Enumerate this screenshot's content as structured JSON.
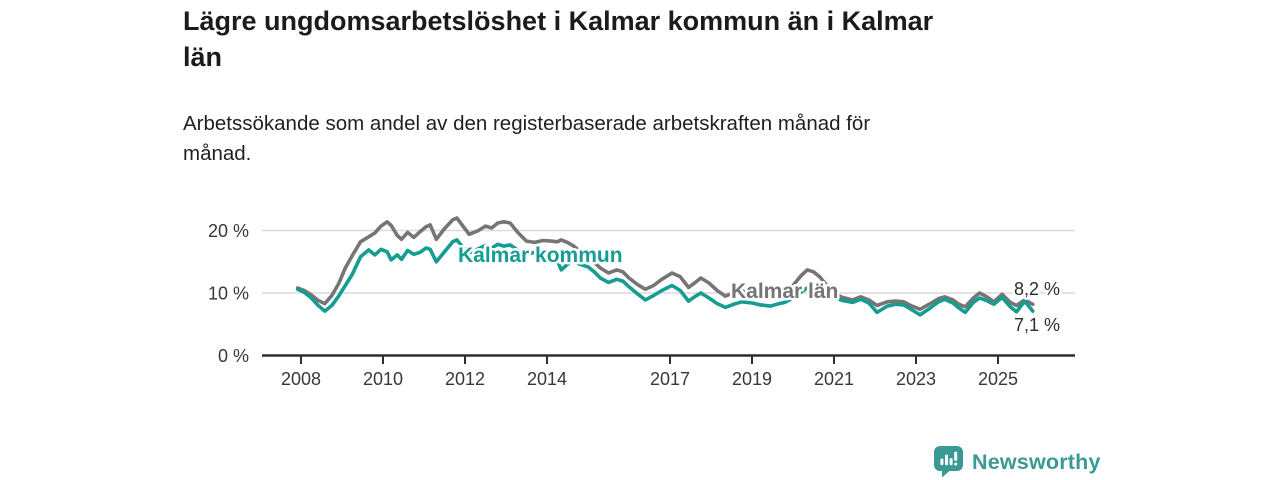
{
  "header": {
    "title": "Lägre ungdomsarbetslöshet i Kalmar kommun än i Kalmar län",
    "subtitle": "Arbetssökande som andel av den registerbaserade arbetskraften månad för månad."
  },
  "footer": {
    "brand": "Newsworthy"
  },
  "colors": {
    "kommun": "#149d90",
    "lan": "#757575",
    "axis": "#2e2e2e",
    "grid": "#dadada",
    "tick_text": "#383838",
    "title_text": "#1b1b1b",
    "brand": "#3a9a93"
  },
  "chart_data": {
    "type": "line",
    "title": "Lägre ungdomsarbetslöshet i Kalmar kommun än i Kalmar län",
    "subtitle": "Arbetssökande som andel av den registerbaserade arbetskraften månad för månad.",
    "xlabel": "",
    "ylabel": "",
    "ylim": [
      0,
      23
    ],
    "xlim": [
      2007.05,
      2026.9
    ],
    "grid": "horizontal",
    "legend_position": "inline-labels",
    "y_ticks": [
      {
        "value": 0,
        "label": "0 %"
      },
      {
        "value": 10,
        "label": "10 %"
      },
      {
        "value": 20,
        "label": "20 %"
      }
    ],
    "x_ticks": [
      {
        "value": 2008,
        "label": "2008"
      },
      {
        "value": 2010,
        "label": "2010"
      },
      {
        "value": 2012,
        "label": "2012"
      },
      {
        "value": 2014,
        "label": "2014"
      },
      {
        "value": 2017,
        "label": "2017"
      },
      {
        "value": 2019,
        "label": "2019"
      },
      {
        "value": 2021,
        "label": "2021"
      },
      {
        "value": 2023,
        "label": "2023"
      },
      {
        "value": 2025,
        "label": "2025"
      }
    ],
    "x": [
      2007.92,
      2008.08,
      2008.25,
      2008.42,
      2008.58,
      2008.75,
      2008.92,
      2009.08,
      2009.25,
      2009.45,
      2009.65,
      2009.8,
      2009.95,
      2010.1,
      2010.2,
      2010.35,
      2010.45,
      2010.6,
      2010.75,
      2010.9,
      2011.05,
      2011.15,
      2011.3,
      2011.5,
      2011.7,
      2011.8,
      2011.95,
      2012.1,
      2012.3,
      2012.5,
      2012.65,
      2012.8,
      2012.95,
      2013.1,
      2013.3,
      2013.5,
      2013.7,
      2013.9,
      2014.1,
      2014.25,
      2014.35,
      2014.5,
      2014.65,
      2014.8,
      2015.0,
      2015.15,
      2015.3,
      2015.5,
      2015.7,
      2015.85,
      2016.0,
      2016.2,
      2016.4,
      2016.6,
      2016.8,
      2017.05,
      2017.25,
      2017.45,
      2017.6,
      2017.75,
      2017.95,
      2018.15,
      2018.35,
      2018.55,
      2018.75,
      2019.0,
      2019.2,
      2019.45,
      2019.6,
      2019.8,
      2020.0,
      2020.2,
      2020.35,
      2020.5,
      2020.65,
      2020.8,
      2021.0,
      2021.2,
      2021.45,
      2021.65,
      2021.85,
      2022.05,
      2022.3,
      2022.5,
      2022.7,
      2022.9,
      2023.1,
      2023.35,
      2023.55,
      2023.7,
      2023.9,
      2024.05,
      2024.2,
      2024.4,
      2024.55,
      2024.75,
      2024.9,
      2025.1,
      2025.3,
      2025.45,
      2025.65,
      2025.85
    ],
    "series": [
      {
        "id": "lan",
        "name": "Kalmar län",
        "color_key": "lan",
        "end_label": "8,2 %",
        "values": [
          10.8,
          10.4,
          9.7,
          8.8,
          8.3,
          9.6,
          11.5,
          14.0,
          16.0,
          18.2,
          19.0,
          19.6,
          20.7,
          21.4,
          20.8,
          19.2,
          18.6,
          19.7,
          18.9,
          19.8,
          20.6,
          20.9,
          18.6,
          20.3,
          21.7,
          22.0,
          20.7,
          19.4,
          19.9,
          20.7,
          20.4,
          21.2,
          21.4,
          21.2,
          19.6,
          18.3,
          18.1,
          18.4,
          18.3,
          18.2,
          18.5,
          18.1,
          17.5,
          16.7,
          15.8,
          14.9,
          14.0,
          13.2,
          13.7,
          13.4,
          12.4,
          11.4,
          10.6,
          11.2,
          12.2,
          13.2,
          12.6,
          10.9,
          11.6,
          12.4,
          11.6,
          10.4,
          9.5,
          10.0,
          10.3,
          10.1,
          9.9,
          9.7,
          9.9,
          10.3,
          11.2,
          12.8,
          13.7,
          13.4,
          12.6,
          11.4,
          10.0,
          9.3,
          8.9,
          9.4,
          8.9,
          8.0,
          8.6,
          8.7,
          8.6,
          7.9,
          7.4,
          8.3,
          9.1,
          9.4,
          8.9,
          8.2,
          7.8,
          9.2,
          10.0,
          9.3,
          8.6,
          9.8,
          8.5,
          8.0,
          8.9,
          8.2
        ]
      },
      {
        "id": "kommun",
        "name": "Kalmar kommun",
        "color_key": "kommun",
        "end_label": "7,1 %",
        "values": [
          10.6,
          10.1,
          9.2,
          8.0,
          7.1,
          8.0,
          9.5,
          11.2,
          13.0,
          15.8,
          16.9,
          16.1,
          17.0,
          16.6,
          15.3,
          16.1,
          15.4,
          16.8,
          16.2,
          16.5,
          17.2,
          17.0,
          15.0,
          16.6,
          18.2,
          18.5,
          17.3,
          16.4,
          17.0,
          17.6,
          17.2,
          17.8,
          17.5,
          17.7,
          16.8,
          16.2,
          16.5,
          16.3,
          16.0,
          15.2,
          13.7,
          14.6,
          15.2,
          14.6,
          14.2,
          13.4,
          12.4,
          11.7,
          12.2,
          11.9,
          11.0,
          9.9,
          8.9,
          9.6,
          10.4,
          11.2,
          10.4,
          8.7,
          9.4,
          10.0,
          9.2,
          8.3,
          7.7,
          8.2,
          8.6,
          8.4,
          8.1,
          7.9,
          8.2,
          8.5,
          9.2,
          10.2,
          10.8,
          10.5,
          10.0,
          9.6,
          9.4,
          8.8,
          8.5,
          9.0,
          8.4,
          6.9,
          7.9,
          8.2,
          8.1,
          7.3,
          6.5,
          7.6,
          8.6,
          9.0,
          8.4,
          7.6,
          6.9,
          8.5,
          9.2,
          8.7,
          8.2,
          9.3,
          7.8,
          7.0,
          8.7,
          7.1
        ]
      }
    ]
  }
}
